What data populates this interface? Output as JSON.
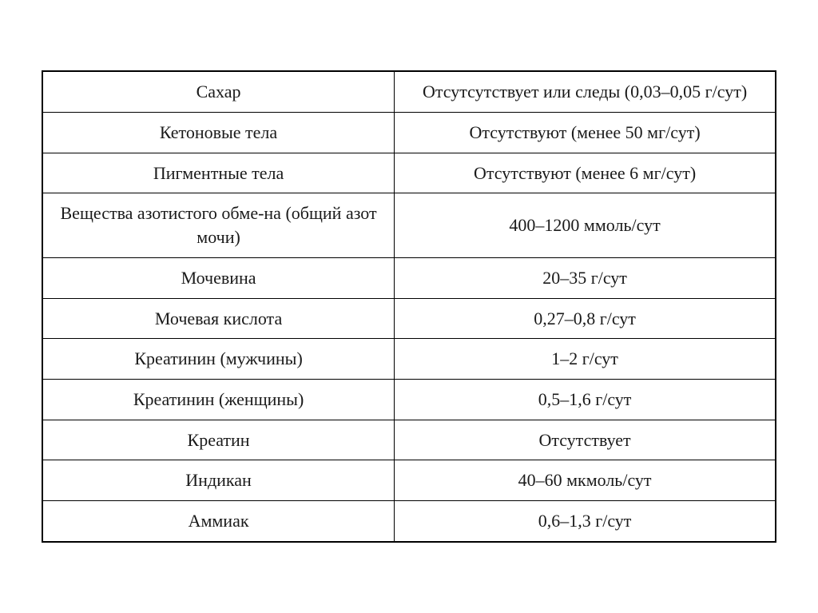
{
  "table": {
    "background_color": "#ffffff",
    "border_color": "#000000",
    "font_family": "Georgia, Times New Roman, serif",
    "font_size": 22,
    "text_color": "#1a1a1a",
    "column_widths": [
      "48%",
      "52%"
    ],
    "rows": [
      {
        "parameter": "Сахар",
        "value": "Отсутсутствует или следы (0,03–0,05 г/сут)"
      },
      {
        "parameter": "Кетоновые тела",
        "value": "Отсутствуют (менее 50 мг/сут)"
      },
      {
        "parameter": "Пигментные тела",
        "value": "Отсутствуют (менее 6 мг/сут)"
      },
      {
        "parameter": "Вещества азотистого обме-на (общий азот мочи)",
        "value": "400–1200 ммоль/сут"
      },
      {
        "parameter": "Мочевина",
        "value": "20–35 г/сут"
      },
      {
        "parameter": "Мочевая кислота",
        "value": "0,27–0,8 г/сут"
      },
      {
        "parameter": "Креатинин (мужчины)",
        "value": "1–2 г/сут"
      },
      {
        "parameter": "Креатинин (женщины)",
        "value": "0,5–1,6 г/сут"
      },
      {
        "parameter": "Креатин",
        "value": "Отсутствует"
      },
      {
        "parameter": "Индикан",
        "value": "40–60 мкмоль/сут"
      },
      {
        "parameter": "Аммиак",
        "value": "0,6–1,3 г/сут"
      }
    ]
  }
}
